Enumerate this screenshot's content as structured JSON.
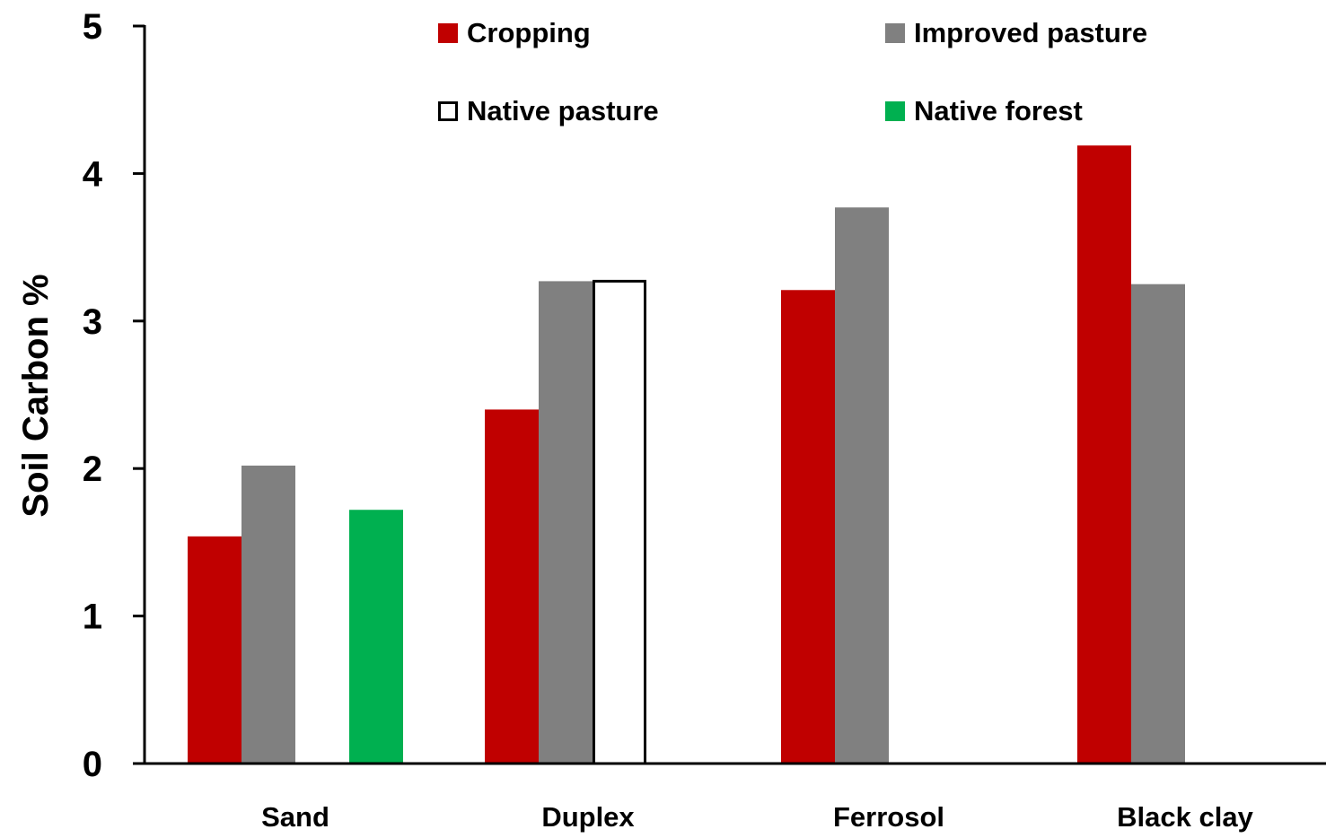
{
  "chart_data": {
    "type": "bar",
    "title": "",
    "xlabel": "",
    "ylabel": "Soil Carbon  %",
    "ylim": [
      0,
      5
    ],
    "yticks": [
      "0",
      "1",
      "2",
      "3",
      "4",
      "5"
    ],
    "categories": [
      "Sand",
      "Duplex",
      "Ferrosol",
      "Black clay"
    ],
    "series": [
      {
        "name": "Cropping",
        "color": "#c00000",
        "values": [
          1.54,
          2.4,
          3.21,
          4.19
        ]
      },
      {
        "name": "Improved pasture",
        "color": "#808080",
        "values": [
          2.02,
          3.27,
          3.77,
          3.25
        ]
      },
      {
        "name": "Native pasture",
        "color": "#ffffff",
        "values": [
          null,
          3.27,
          null,
          null
        ]
      },
      {
        "name": "Native forest",
        "color": "#00b050",
        "values": [
          1.72,
          null,
          null,
          null
        ]
      }
    ],
    "grid": false,
    "legend_position": "top"
  }
}
